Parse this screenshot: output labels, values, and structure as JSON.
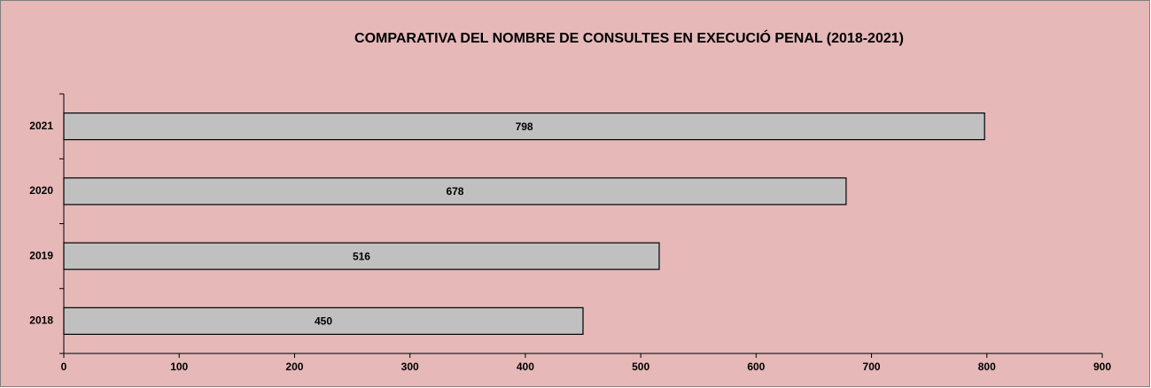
{
  "chart_data": {
    "type": "bar",
    "orientation": "horizontal",
    "title": "COMPARATIVA DEL NOMBRE DE CONSULTES EN EXECUCIÓ PENAL (2018-2021)",
    "categories": [
      "2018",
      "2019",
      "2020",
      "2021"
    ],
    "values": [
      450,
      516,
      678,
      798
    ],
    "color": "#c0c0c0",
    "xlim": [
      0,
      900
    ],
    "xticks": [
      0,
      100,
      200,
      300,
      400,
      500,
      600,
      700,
      800,
      900
    ],
    "grid": false
  }
}
